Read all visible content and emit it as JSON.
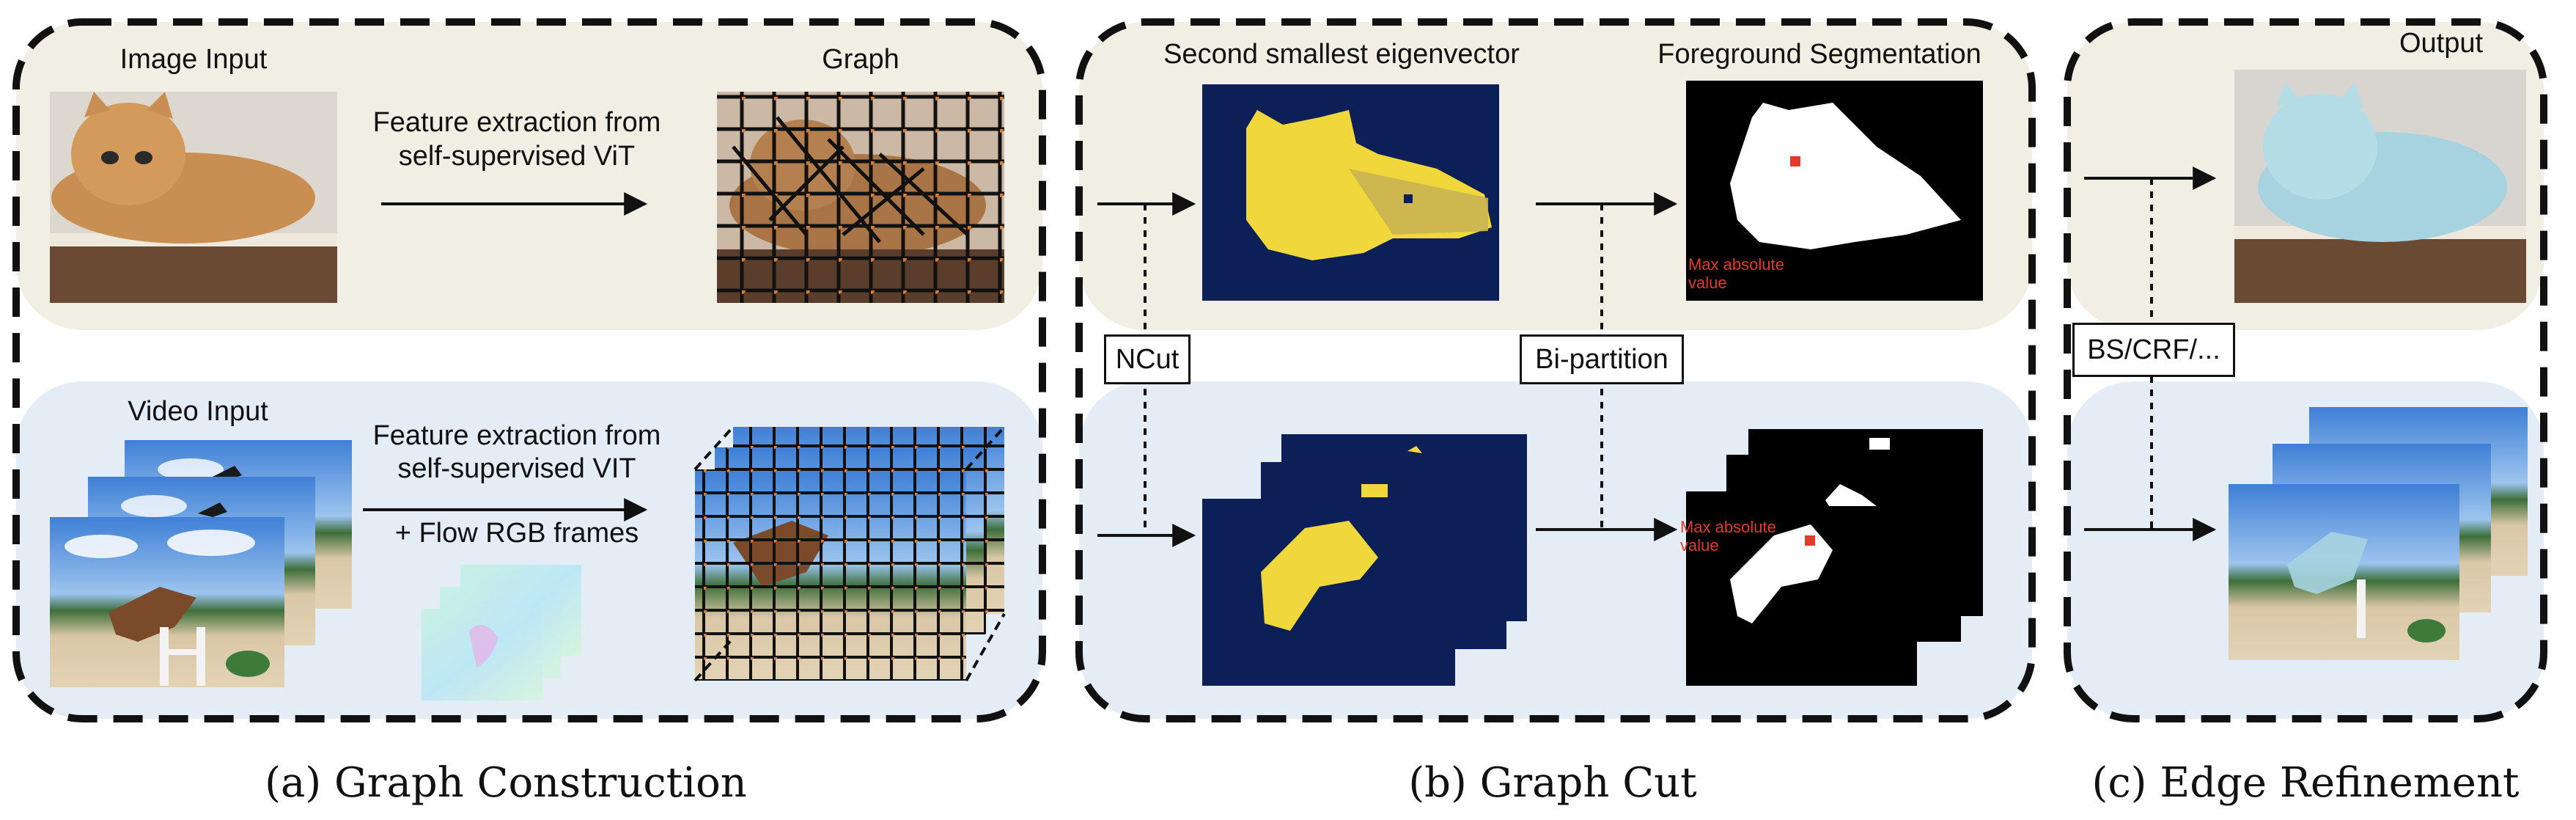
{
  "panel_a": {
    "image_input_label": "Image Input",
    "graph_label": "Graph",
    "feature_text_image": [
      "Feature extraction from",
      "self-supervised ViT"
    ],
    "video_input_label": "Video Input",
    "feature_text_video": [
      "Feature extraction from",
      "self-supervised VIT"
    ],
    "flow_text": "+ Flow RGB frames",
    "caption": "(a) Graph Construction"
  },
  "panel_b": {
    "eigen_label": "Second smallest eigenvector",
    "fg_label": "Foreground Segmentation",
    "ncut_label": "NCut",
    "bipartition_label": "Bi-partition",
    "max_abs_label": [
      "Max absolute",
      "value"
    ],
    "caption": "(b) Graph Cut"
  },
  "panel_c": {
    "output_label": "Output",
    "refine_label": "BS/CRF/...",
    "caption": "(c) Edge Refinement"
  },
  "colors": {
    "image_row_bg": "#f1efe3",
    "video_row_bg": "#e4edf6",
    "eigen_bg": "#0c1f57",
    "eigen_fg": "#f0d83c",
    "mask_bg": "#000000",
    "mask_fg": "#ffffff",
    "max_marker": "#e23b2b"
  }
}
